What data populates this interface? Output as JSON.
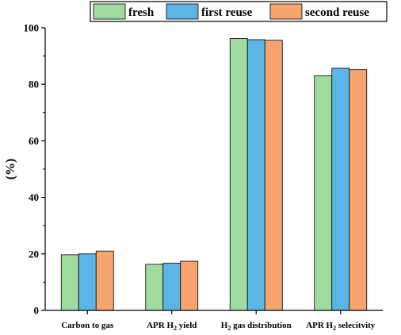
{
  "chart_data": {
    "type": "bar",
    "title": "",
    "xlabel": "",
    "ylabel": "(%)",
    "ylim": [
      0,
      100
    ],
    "yticks": [
      0,
      20,
      40,
      60,
      80,
      100
    ],
    "grid": false,
    "legend_position": "top-right",
    "categories": [
      {
        "prefix": "Carbon to gas",
        "sub": "",
        "suffix": ""
      },
      {
        "prefix": "APR H",
        "sub": "2",
        "suffix": " yield"
      },
      {
        "prefix": "H",
        "sub": "2",
        "suffix": " gas distribution"
      },
      {
        "prefix": "APR H",
        "sub": "2",
        "suffix": " selecitvity"
      }
    ],
    "series": [
      {
        "name": "fresh",
        "color": "#9fdb9f",
        "values": [
          19.7,
          16.3,
          96.2,
          83.0
        ]
      },
      {
        "name": "first reuse",
        "color": "#5ab4e5",
        "values": [
          20.0,
          16.7,
          95.8,
          85.7
        ]
      },
      {
        "name": "second reuse",
        "color": "#f7a46e",
        "values": [
          21.0,
          17.4,
          95.6,
          85.2
        ]
      }
    ]
  }
}
